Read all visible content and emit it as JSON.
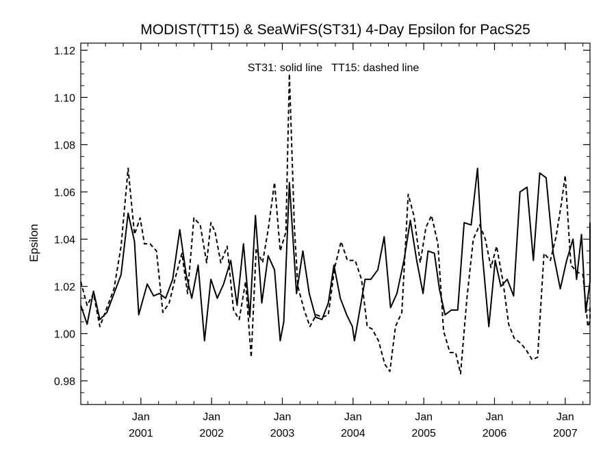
{
  "chart_data": {
    "type": "line",
    "title": "MODIST(TT15) & SeaWiFS(ST31) 4-Day Epsilon for PacS25",
    "xlabel": "",
    "ylabel": "Epsilon",
    "annotation": "ST31: solid line   TT15: dashed line",
    "xlim": [
      2000.15,
      2007.35
    ],
    "ylim": [
      0.97,
      1.123
    ],
    "yticks": [
      0.98,
      1.0,
      1.02,
      1.04,
      1.06,
      1.08,
      1.1,
      1.12
    ],
    "ytick_labels": [
      "0.98",
      "1.00",
      "1.02",
      "1.04",
      "1.06",
      "1.08",
      "1.10",
      "1.12"
    ],
    "xticks": [
      {
        "x": 2001,
        "month": "Jan",
        "year": "2001"
      },
      {
        "x": 2002,
        "month": "Jan",
        "year": "2002"
      },
      {
        "x": 2003,
        "month": "Jan",
        "year": "2003"
      },
      {
        "x": 2004,
        "month": "Jan",
        "year": "2004"
      },
      {
        "x": 2005,
        "month": "Jan",
        "year": "2005"
      },
      {
        "x": 2006,
        "month": "Jan",
        "year": "2006"
      },
      {
        "x": 2007,
        "month": "Jan",
        "year": "2007"
      }
    ],
    "grid": false,
    "series": [
      {
        "name": "ST31",
        "style": "solid",
        "color": "#000000",
        "points": [
          [
            2000.15,
            1.012
          ],
          [
            2000.24,
            1.004
          ],
          [
            2000.33,
            1.018
          ],
          [
            2000.42,
            1.006
          ],
          [
            2000.52,
            1.009
          ],
          [
            2000.62,
            1.017
          ],
          [
            2000.72,
            1.025
          ],
          [
            2000.82,
            1.051
          ],
          [
            2000.91,
            1.039
          ],
          [
            2000.97,
            1.008
          ],
          [
            2001.09,
            1.021
          ],
          [
            2001.18,
            1.016
          ],
          [
            2001.26,
            1.017
          ],
          [
            2001.35,
            1.015
          ],
          [
            2001.45,
            1.023
          ],
          [
            2001.55,
            1.044
          ],
          [
            2001.64,
            1.025
          ],
          [
            2001.72,
            1.015
          ],
          [
            2001.81,
            1.029
          ],
          [
            2001.9,
            0.997
          ],
          [
            2001.99,
            1.023
          ],
          [
            2002.08,
            1.015
          ],
          [
            2002.17,
            1.021
          ],
          [
            2002.27,
            1.031
          ],
          [
            2002.36,
            1.012
          ],
          [
            2002.45,
            1.038
          ],
          [
            2002.54,
            1.007
          ],
          [
            2002.62,
            1.05
          ],
          [
            2002.71,
            1.013
          ],
          [
            2002.8,
            1.033
          ],
          [
            2002.89,
            1.027
          ],
          [
            2002.97,
            0.997
          ],
          [
            2003.02,
            1.005
          ],
          [
            2003.1,
            1.064
          ],
          [
            2003.2,
            1.017
          ],
          [
            2003.29,
            1.035
          ],
          [
            2003.38,
            1.017
          ],
          [
            2003.47,
            1.007
          ],
          [
            2003.56,
            1.006
          ],
          [
            2003.65,
            1.013
          ],
          [
            2003.73,
            1.029
          ],
          [
            2003.82,
            1.015
          ],
          [
            2003.91,
            1.008
          ],
          [
            2003.99,
            1.003
          ],
          [
            2004.02,
            0.997
          ],
          [
            2004.17,
            1.023
          ],
          [
            2004.25,
            1.023
          ],
          [
            2004.35,
            1.027
          ],
          [
            2004.44,
            1.041
          ],
          [
            2004.53,
            1.011
          ],
          [
            2004.62,
            1.017
          ],
          [
            2004.72,
            1.031
          ],
          [
            2004.81,
            1.048
          ],
          [
            2004.9,
            1.031
          ],
          [
            2004.99,
            1.017
          ],
          [
            2005.06,
            1.035
          ],
          [
            2005.15,
            1.034
          ],
          [
            2005.22,
            1.019
          ],
          [
            2005.3,
            1.008
          ],
          [
            2005.39,
            1.01
          ],
          [
            2005.48,
            1.01
          ],
          [
            2005.57,
            1.047
          ],
          [
            2005.67,
            1.046
          ],
          [
            2005.76,
            1.07
          ],
          [
            2005.83,
            1.033
          ],
          [
            2005.92,
            1.003
          ],
          [
            2006.01,
            1.031
          ],
          [
            2006.09,
            1.02
          ],
          [
            2006.18,
            1.023
          ],
          [
            2006.27,
            1.016
          ],
          [
            2006.36,
            1.06
          ],
          [
            2006.46,
            1.062
          ],
          [
            2006.55,
            1.031
          ],
          [
            2006.64,
            1.068
          ],
          [
            2006.73,
            1.066
          ],
          [
            2006.83,
            1.034
          ],
          [
            2006.93,
            1.019
          ],
          [
            2007.02,
            1.031
          ],
          [
            2007.11,
            1.04
          ],
          [
            2007.16,
            1.023
          ],
          [
            2007.23,
            1.042
          ],
          [
            2007.29,
            1.009
          ],
          [
            2007.35,
            1.022
          ],
          [
            2007.43,
            1.047
          ]
        ]
      },
      {
        "name": "TT15",
        "style": "dashed",
        "color": "#000000",
        "points": [
          [
            2000.15,
            1.022
          ],
          [
            2000.24,
            1.012
          ],
          [
            2000.33,
            1.017
          ],
          [
            2000.42,
            1.003
          ],
          [
            2000.52,
            1.011
          ],
          [
            2000.62,
            1.019
          ],
          [
            2000.72,
            1.037
          ],
          [
            2000.82,
            1.07
          ],
          [
            2000.91,
            1.042
          ],
          [
            2000.99,
            1.049
          ],
          [
            2001.05,
            1.038
          ],
          [
            2001.13,
            1.038
          ],
          [
            2001.22,
            1.035
          ],
          [
            2001.31,
            1.009
          ],
          [
            2001.4,
            1.013
          ],
          [
            2001.49,
            1.024
          ],
          [
            2001.58,
            1.034
          ],
          [
            2001.66,
            1.017
          ],
          [
            2001.75,
            1.049
          ],
          [
            2001.84,
            1.046
          ],
          [
            2001.93,
            1.03
          ],
          [
            2001.99,
            1.047
          ],
          [
            2002.05,
            1.043
          ],
          [
            2002.13,
            1.03
          ],
          [
            2002.22,
            1.037
          ],
          [
            2002.31,
            1.01
          ],
          [
            2002.39,
            1.006
          ],
          [
            2002.48,
            1.022
          ],
          [
            2002.56,
            0.99
          ],
          [
            2002.63,
            1.036
          ],
          [
            2002.72,
            1.03
          ],
          [
            2002.8,
            1.044
          ],
          [
            2002.89,
            1.064
          ],
          [
            2002.97,
            1.035
          ],
          [
            2003.05,
            1.043
          ],
          [
            2003.1,
            1.11
          ],
          [
            2003.17,
            1.045
          ],
          [
            2003.22,
            1.02
          ],
          [
            2003.31,
            1.01
          ],
          [
            2003.39,
            1.003
          ],
          [
            2003.48,
            1.008
          ],
          [
            2003.57,
            1.007
          ],
          [
            2003.65,
            1.008
          ],
          [
            2003.74,
            1.028
          ],
          [
            2003.83,
            1.039
          ],
          [
            2003.92,
            1.031
          ],
          [
            2003.99,
            1.031
          ],
          [
            2004.03,
            1.031
          ],
          [
            2004.12,
            1.023
          ],
          [
            2004.2,
            1.003
          ],
          [
            2004.27,
            1.002
          ],
          [
            2004.36,
            0.997
          ],
          [
            2004.45,
            0.987
          ],
          [
            2004.52,
            0.984
          ],
          [
            2004.6,
            1.003
          ],
          [
            2004.69,
            1.009
          ],
          [
            2004.78,
            1.059
          ],
          [
            2004.86,
            1.05
          ],
          [
            2004.95,
            1.03
          ],
          [
            2005.03,
            1.045
          ],
          [
            2005.11,
            1.05
          ],
          [
            2005.2,
            1.038
          ],
          [
            2005.28,
            1.001
          ],
          [
            2005.37,
            0.992
          ],
          [
            2005.45,
            0.992
          ],
          [
            2005.52,
            0.983
          ],
          [
            2005.61,
            1.015
          ],
          [
            2005.7,
            1.04
          ],
          [
            2005.79,
            1.046
          ],
          [
            2005.87,
            1.04
          ],
          [
            2005.95,
            1.028
          ],
          [
            2006.03,
            1.037
          ],
          [
            2006.12,
            1.022
          ],
          [
            2006.2,
            1.004
          ],
          [
            2006.28,
            0.998
          ],
          [
            2006.37,
            0.996
          ],
          [
            2006.45,
            0.993
          ],
          [
            2006.53,
            0.989
          ],
          [
            2006.61,
            0.99
          ],
          [
            2006.7,
            1.034
          ],
          [
            2006.79,
            1.031
          ],
          [
            2006.87,
            1.041
          ],
          [
            2006.94,
            1.054
          ],
          [
            2007.0,
            1.067
          ],
          [
            2007.08,
            1.029
          ],
          [
            2007.17,
            1.026
          ],
          [
            2007.25,
            1.025
          ],
          [
            2007.32,
            1.003
          ],
          [
            2007.37,
            1.005
          ],
          [
            2007.43,
            1.011
          ]
        ]
      }
    ]
  }
}
